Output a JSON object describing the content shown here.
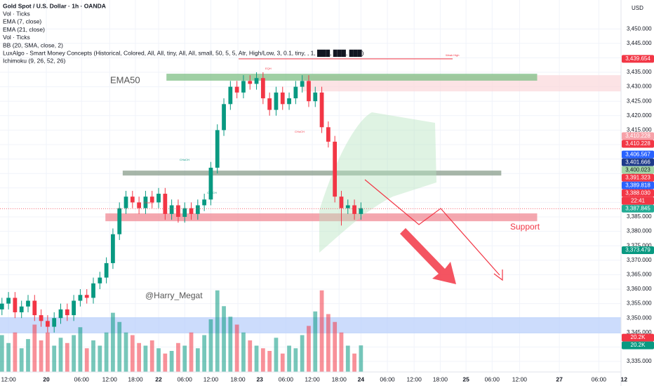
{
  "chart_data": {
    "type": "candlestick",
    "title": "Gold Spot / U.S. Dollar · 1h · OANDA",
    "indicators": [
      "Vol · Ticks",
      "EMA (7, close)",
      "EMA (21, close)",
      "Vol · Ticks",
      "BB (20, SMA, close, 2)",
      "LuxAlgo - Smart Money Concepts (Historical, Colored, All, All, tiny, All, All, small, 50, 5, 5, Atr, High/Low, 3, 0.1, tiny, , 1, ███, ███, ███)",
      "Ichimoku (9, 26, 52, 26)"
    ],
    "currency": "USD",
    "annotations": {
      "ema50": "EMA50",
      "watermark": "@Harry_Megat",
      "support": "Support",
      "weak_high": "Weak High",
      "eqh": "EQH",
      "choch": "CHoCH"
    },
    "candles": {
      "x": [
        -2,
        0,
        2,
        4,
        6,
        8,
        10,
        12,
        14,
        16,
        18,
        20,
        22,
        24,
        26,
        28,
        30,
        32,
        34,
        36,
        38,
        40,
        42,
        44,
        46,
        48,
        50,
        52,
        54,
        56,
        58,
        60,
        62,
        64,
        66,
        68,
        70,
        72,
        74,
        76,
        78,
        80,
        82,
        84,
        86,
        88,
        90,
        92,
        94,
        96,
        98,
        100,
        102,
        104,
        106,
        108
      ],
      "open": [
        3353,
        3355,
        3357,
        3352,
        3354,
        3356,
        3351,
        3349,
        3347,
        3350,
        3353,
        3351,
        3356,
        3358,
        3357,
        3362,
        3364,
        3369,
        3379,
        3388,
        3392,
        3390,
        3388,
        3392,
        3390,
        3393,
        3386,
        3389,
        3385,
        3388,
        3386,
        3389,
        3391,
        3402,
        3415,
        3424,
        3430,
        3428,
        3432,
        3431,
        3433,
        3426,
        3422,
        3428,
        3424,
        3426,
        3430,
        3432,
        3425,
        3428,
        3416,
        3411,
        3392,
        3388,
        3389,
        3386
      ],
      "high": [
        3357,
        3359,
        3359,
        3356,
        3358,
        3358,
        3353,
        3351,
        3352,
        3355,
        3355,
        3358,
        3360,
        3360,
        3364,
        3366,
        3371,
        3381,
        3390,
        3394,
        3394,
        3392,
        3394,
        3394,
        3395,
        3395,
        3391,
        3391,
        3390,
        3390,
        3391,
        3393,
        3404,
        3417,
        3426,
        3432,
        3432,
        3434,
        3434,
        3435,
        3435,
        3428,
        3430,
        3430,
        3428,
        3432,
        3434,
        3434,
        3430,
        3430,
        3418,
        3413,
        3394,
        3391,
        3391,
        3390
      ],
      "low": [
        3351,
        3353,
        3350,
        3350,
        3352,
        3349,
        3347,
        3345,
        3345,
        3348,
        3349,
        3349,
        3354,
        3355,
        3355,
        3360,
        3362,
        3367,
        3377,
        3386,
        3388,
        3386,
        3386,
        3388,
        3388,
        3384,
        3384,
        3383,
        3383,
        3384,
        3384,
        3387,
        3389,
        3400,
        3413,
        3422,
        3426,
        3426,
        3429,
        3429,
        3424,
        3420,
        3420,
        3422,
        3422,
        3424,
        3428,
        3423,
        3423,
        3414,
        3409,
        3390,
        3382,
        3386,
        3384,
        3384
      ],
      "close": [
        3355,
        3357,
        3352,
        3354,
        3356,
        3351,
        3349,
        3347,
        3350,
        3353,
        3351,
        3356,
        3358,
        3357,
        3362,
        3364,
        3369,
        3379,
        3388,
        3392,
        3390,
        3388,
        3392,
        3390,
        3393,
        3386,
        3389,
        3385,
        3388,
        3386,
        3389,
        3391,
        3402,
        3415,
        3424,
        3430,
        3428,
        3432,
        3431,
        3433,
        3426,
        3422,
        3428,
        3424,
        3426,
        3430,
        3432,
        3425,
        3428,
        3416,
        3411,
        3392,
        3388,
        3389,
        3386,
        3388
      ],
      "volume": [
        28000,
        22000,
        30000,
        18000,
        25000,
        36000,
        24000,
        30000,
        20000,
        26000,
        22000,
        28000,
        34000,
        18000,
        24000,
        20000,
        30000,
        45000,
        38000,
        30000,
        28000,
        22000,
        20000,
        24000,
        18000,
        14000,
        16000,
        22000,
        20000,
        30000,
        18000,
        28000,
        40000,
        62000,
        50000,
        42000,
        36000,
        30000,
        24000,
        20000,
        18000,
        16000,
        26000,
        14000,
        20000,
        18000,
        28000,
        35000,
        46000,
        62000,
        44000,
        38000,
        30000,
        20000,
        14000,
        20200
      ],
      "up_color": "#089981",
      "down_color": "#f23645"
    },
    "volume_lim": [
      0,
      64000
    ],
    "xlim": [
      -2.6,
      197.8
    ],
    "ylim": [
      3331.36,
      3460
    ],
    "grid": true,
    "xticks": [
      {
        "value": 0,
        "label": "12:00"
      },
      {
        "value": 11.6,
        "label": "20"
      },
      {
        "value": 22.4,
        "label": "06:00"
      },
      {
        "value": 31,
        "label": "12:00"
      },
      {
        "value": 38.9,
        "label": "18:00"
      },
      {
        "value": 46,
        "label": "22"
      },
      {
        "value": 54,
        "label": "06:00"
      },
      {
        "value": 62,
        "label": "12:00"
      },
      {
        "value": 70.3,
        "label": "18:00"
      },
      {
        "value": 77,
        "label": "23"
      },
      {
        "value": 85,
        "label": "06:00"
      },
      {
        "value": 93.1,
        "label": "12:00"
      },
      {
        "value": 101.3,
        "label": "18:00"
      },
      {
        "value": 108,
        "label": "24"
      },
      {
        "value": 116.1,
        "label": "06:00"
      },
      {
        "value": 124.3,
        "label": "12:00"
      },
      {
        "value": 132.3,
        "label": "18:00"
      },
      {
        "value": 140.2,
        "label": "25"
      },
      {
        "value": 148.2,
        "label": "06:00"
      },
      {
        "value": 156.6,
        "label": "12:00"
      },
      {
        "value": 168.8,
        "label": "27"
      },
      {
        "value": 180.9,
        "label": "06:00"
      },
      {
        "value": 188.6,
        "label": "12"
      }
    ],
    "yticks": [
      {
        "value": 3335,
        "label": "3,335.000"
      },
      {
        "value": 3340,
        "label": "3,340.000"
      },
      {
        "value": 3345,
        "label": "3,345.000"
      },
      {
        "value": 3350,
        "label": "3,350.000"
      },
      {
        "value": 3355,
        "label": "3,355.000"
      },
      {
        "value": 3360,
        "label": "3,360.000"
      },
      {
        "value": 3365,
        "label": "3,365.000"
      },
      {
        "value": 3370,
        "label": "3,370.000"
      },
      {
        "value": 3375,
        "label": "3,375.000"
      },
      {
        "value": 3380,
        "label": "3,380.000"
      },
      {
        "value": 3385,
        "label": "3,385.000"
      },
      {
        "value": 3390,
        "label": "3,390.000"
      },
      {
        "value": 3395,
        "label": "3,395.000"
      },
      {
        "value": 3400,
        "label": "3,400.000"
      },
      {
        "value": 3405,
        "label": "3,405.000"
      },
      {
        "value": 3410,
        "label": "3,410.000"
      },
      {
        "value": 3415,
        "label": "3,415.000"
      },
      {
        "value": 3420,
        "label": "3,420.000"
      },
      {
        "value": 3425,
        "label": "3,425.000"
      },
      {
        "value": 3430,
        "label": "3,430.000"
      },
      {
        "value": 3435,
        "label": "3,435.000"
      },
      {
        "value": 3440,
        "label": "3,440.000"
      },
      {
        "value": 3445,
        "label": "3,445.000"
      },
      {
        "value": 3450,
        "label": "3,450.000"
      }
    ],
    "zones": [
      {
        "low": 3344.7,
        "high": 3350.3,
        "from": -2.6,
        "to": 188,
        "color": "#bbd0fb"
      },
      {
        "low": 3428.4,
        "high": 3434,
        "from": 90,
        "to": 188,
        "color": "#fbd9dc"
      },
      {
        "low": 3432.1,
        "high": 3434.5,
        "from": 48.4,
        "to": 162,
        "color": "#7fbf86"
      },
      {
        "low": 3399.3,
        "high": 3401,
        "from": 35,
        "to": 151,
        "color": "#8a9e8c"
      },
      {
        "low": 3383.5,
        "high": 3386.2,
        "from": 29.7,
        "to": 162,
        "color": "#f08a94"
      }
    ],
    "price_markers": [
      {
        "value": 3439.654,
        "label": "3,439.654",
        "color": "#f23645"
      },
      {
        "value": 3410.228,
        "label": "3,410.228",
        "color": "#f7a1a8"
      },
      {
        "value": 3410.228,
        "label": "3,410.228",
        "color": "#f23645"
      },
      {
        "value": 3406.567,
        "label": "3,406.567",
        "color": "#2962ff"
      },
      {
        "value": 3401.666,
        "label": "3,401.666",
        "color": "#1e3a8a"
      },
      {
        "value": 3400.023,
        "label": "3,400.023",
        "color": "#a5d6a7"
      },
      {
        "value": 3391.323,
        "label": "3,391.323",
        "color": "#f23645"
      },
      {
        "value": 3389.818,
        "label": "3,389.818",
        "color": "#2962ff"
      },
      {
        "value": 3388.03,
        "label": "3,388.030",
        "color": "#f23645"
      },
      {
        "label": "22:41",
        "color": "#f23645"
      },
      {
        "value": 3387.845,
        "label": "3,387.845",
        "color": "#22ab94"
      },
      {
        "value": 3373.479,
        "label": "3,373.479",
        "color": "#089981"
      }
    ],
    "volume_markers": [
      {
        "value": 20200,
        "label": "20.2K",
        "color": "#f23645"
      },
      {
        "value": 20200,
        "label": "20.2K",
        "color": "#089981"
      }
    ]
  }
}
